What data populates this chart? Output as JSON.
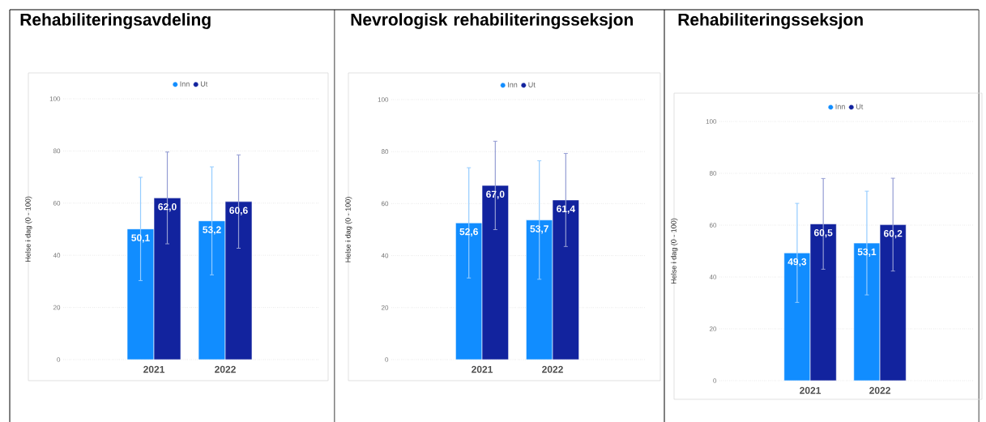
{
  "chart_data": [
    {
      "type": "bar",
      "title": "Rehabiliteringsavdeling",
      "ylabel": "Helse i dag (0 - 100)",
      "categories": [
        "2021",
        "2022"
      ],
      "ylim": [
        0,
        100
      ],
      "yticks": [
        0,
        20,
        40,
        60,
        80,
        100
      ],
      "grid": "y",
      "legend": "top",
      "series": [
        {
          "name": "Inn",
          "color": "#118dff",
          "values": [
            50.1,
            53.2
          ],
          "errors": [
            19.8,
            20.7
          ],
          "value_labels": [
            "50,1",
            "53,2"
          ]
        },
        {
          "name": "Ut",
          "color": "#12239e",
          "values": [
            62.0,
            60.6
          ],
          "errors": [
            17.6,
            17.9
          ],
          "value_labels": [
            "62,0",
            "60,6"
          ]
        }
      ]
    },
    {
      "type": "bar",
      "title": "Nevrologisk rehabiliteringsseksjon",
      "ylabel": "Helse i dag (0 - 100)",
      "categories": [
        "2021",
        "2022"
      ],
      "ylim": [
        0,
        100
      ],
      "yticks": [
        0,
        20,
        40,
        60,
        80,
        100
      ],
      "grid": "y",
      "legend": "top",
      "series": [
        {
          "name": "Inn",
          "color": "#118dff",
          "values": [
            52.6,
            53.7
          ],
          "errors": [
            21.2,
            22.8
          ],
          "value_labels": [
            "52,6",
            "53,7"
          ]
        },
        {
          "name": "Ut",
          "color": "#12239e",
          "values": [
            67.0,
            61.4
          ],
          "errors": [
            17.0,
            17.9
          ],
          "value_labels": [
            "67,0",
            "61,4"
          ]
        }
      ]
    },
    {
      "type": "bar",
      "title": "Rehabiliteringsseksjon",
      "ylabel": "Helse i dag (0 - 100)",
      "categories": [
        "2021",
        "2022"
      ],
      "ylim": [
        0,
        100
      ],
      "yticks": [
        0,
        20,
        40,
        60,
        80,
        100
      ],
      "grid": "y",
      "legend": "top",
      "series": [
        {
          "name": "Inn",
          "color": "#118dff",
          "values": [
            49.3,
            53.1
          ],
          "errors": [
            19.1,
            20.0
          ],
          "value_labels": [
            "49,3",
            "53,1"
          ]
        },
        {
          "name": "Ut",
          "color": "#12239e",
          "values": [
            60.5,
            60.2
          ],
          "errors": [
            17.5,
            17.9
          ],
          "value_labels": [
            "60,5",
            "60,2"
          ]
        }
      ]
    }
  ]
}
